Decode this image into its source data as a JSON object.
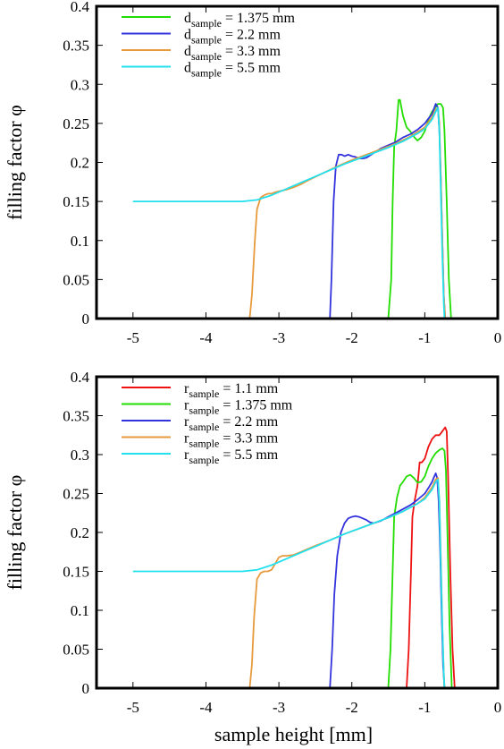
{
  "chart_data": [
    {
      "type": "line",
      "ylabel": "filling factor φ",
      "xlabel": "",
      "xlim": [
        -5.5,
        0
      ],
      "ylim": [
        0,
        0.4
      ],
      "xticks": [
        "-5",
        "-4",
        "-3",
        "-2",
        "-1",
        "0"
      ],
      "yticks": [
        "0",
        "0.05",
        "0.1",
        "0.15",
        "0.2",
        "0.25",
        "0.3",
        "0.35",
        "0.4"
      ],
      "legend_position": "top-left",
      "series": [
        {
          "name_main": "d",
          "name_sub": "sample",
          "name_rest": " = 1.375 mm",
          "color": "#22dd00",
          "points": [
            [
              -1.5,
              0
            ],
            [
              -1.46,
              0.05
            ],
            [
              -1.44,
              0.15
            ],
            [
              -1.42,
              0.22
            ],
            [
              -1.39,
              0.24
            ],
            [
              -1.36,
              0.28
            ],
            [
              -1.34,
              0.28
            ],
            [
              -1.3,
              0.26
            ],
            [
              -1.25,
              0.245
            ],
            [
              -1.2,
              0.24
            ],
            [
              -1.14,
              0.232
            ],
            [
              -1.1,
              0.228
            ],
            [
              -1.05,
              0.232
            ],
            [
              -1.0,
              0.24
            ],
            [
              -0.95,
              0.255
            ],
            [
              -0.9,
              0.265
            ],
            [
              -0.86,
              0.27
            ],
            [
              -0.82,
              0.275
            ],
            [
              -0.78,
              0.275
            ],
            [
              -0.75,
              0.27
            ],
            [
              -0.73,
              0.24
            ],
            [
              -0.7,
              0.15
            ],
            [
              -0.67,
              0.05
            ],
            [
              -0.64,
              0
            ]
          ]
        },
        {
          "name_main": "d",
          "name_sub": "sample",
          "name_rest": " = 2.2 mm",
          "color": "#3333dd",
          "points": [
            [
              -2.3,
              0
            ],
            [
              -2.28,
              0.05
            ],
            [
              -2.25,
              0.15
            ],
            [
              -2.22,
              0.195
            ],
            [
              -2.18,
              0.21
            ],
            [
              -2.14,
              0.21
            ],
            [
              -2.1,
              0.208
            ],
            [
              -2.05,
              0.21
            ],
            [
              -2.0,
              0.208
            ],
            [
              -1.95,
              0.207
            ],
            [
              -1.9,
              0.205
            ],
            [
              -1.85,
              0.205
            ],
            [
              -1.8,
              0.206
            ],
            [
              -1.7,
              0.212
            ],
            [
              -1.6,
              0.218
            ],
            [
              -1.5,
              0.222
            ],
            [
              -1.4,
              0.226
            ],
            [
              -1.3,
              0.232
            ],
            [
              -1.2,
              0.236
            ],
            [
              -1.1,
              0.242
            ],
            [
              -1.0,
              0.25
            ],
            [
              -0.95,
              0.256
            ],
            [
              -0.9,
              0.262
            ],
            [
              -0.87,
              0.27
            ],
            [
              -0.85,
              0.275
            ],
            [
              -0.82,
              0.27
            ],
            [
              -0.8,
              0.24
            ],
            [
              -0.78,
              0.18
            ],
            [
              -0.76,
              0.1
            ],
            [
              -0.74,
              0.03
            ],
            [
              -0.72,
              0
            ]
          ]
        },
        {
          "name_main": "d",
          "name_sub": "sample",
          "name_rest": " = 3.3 mm",
          "color": "#e69a3c",
          "points": [
            [
              -3.4,
              0
            ],
            [
              -3.37,
              0.03
            ],
            [
              -3.33,
              0.1
            ],
            [
              -3.3,
              0.14
            ],
            [
              -3.25,
              0.155
            ],
            [
              -3.2,
              0.158
            ],
            [
              -3.15,
              0.16
            ],
            [
              -3.1,
              0.16
            ],
            [
              -3.05,
              0.162
            ],
            [
              -3.0,
              0.163
            ],
            [
              -2.9,
              0.165
            ],
            [
              -2.8,
              0.168
            ],
            [
              -2.7,
              0.172
            ],
            [
              -2.6,
              0.177
            ],
            [
              -2.4,
              0.186
            ],
            [
              -2.2,
              0.195
            ],
            [
              -2.0,
              0.203
            ],
            [
              -1.8,
              0.21
            ],
            [
              -1.6,
              0.217
            ],
            [
              -1.4,
              0.224
            ],
            [
              -1.2,
              0.233
            ],
            [
              -1.0,
              0.245
            ],
            [
              -0.9,
              0.258
            ],
            [
              -0.85,
              0.268
            ],
            [
              -0.82,
              0.27
            ],
            [
              -0.8,
              0.25
            ],
            [
              -0.78,
              0.18
            ],
            [
              -0.76,
              0.1
            ],
            [
              -0.74,
              0.03
            ],
            [
              -0.72,
              0
            ]
          ]
        },
        {
          "name_main": "d",
          "name_sub": "sample",
          "name_rest": " = 5.5 mm",
          "color": "#22e0ee",
          "points": [
            [
              -5.0,
              0.15
            ],
            [
              -4.5,
              0.15
            ],
            [
              -4.0,
              0.15
            ],
            [
              -3.5,
              0.15
            ],
            [
              -3.3,
              0.152
            ],
            [
              -3.1,
              0.158
            ],
            [
              -2.9,
              0.166
            ],
            [
              -2.7,
              0.174
            ],
            [
              -2.5,
              0.182
            ],
            [
              -2.3,
              0.19
            ],
            [
              -2.1,
              0.198
            ],
            [
              -1.9,
              0.205
            ],
            [
              -1.7,
              0.212
            ],
            [
              -1.5,
              0.219
            ],
            [
              -1.3,
              0.227
            ],
            [
              -1.1,
              0.237
            ],
            [
              -1.0,
              0.243
            ],
            [
              -0.9,
              0.255
            ],
            [
              -0.85,
              0.265
            ],
            [
              -0.82,
              0.27
            ],
            [
              -0.8,
              0.24
            ],
            [
              -0.78,
              0.16
            ],
            [
              -0.76,
              0.08
            ],
            [
              -0.74,
              0.02
            ],
            [
              -0.73,
              0
            ]
          ]
        }
      ]
    },
    {
      "type": "line",
      "ylabel": "filling factor φ",
      "xlabel": "sample height [mm]",
      "xlim": [
        -5.5,
        0
      ],
      "ylim": [
        0,
        0.4
      ],
      "xticks": [
        "-5",
        "-4",
        "-3",
        "-2",
        "-1",
        "0"
      ],
      "yticks": [
        "0",
        "0.05",
        "0.1",
        "0.15",
        "0.2",
        "0.25",
        "0.3",
        "0.35",
        "0.4"
      ],
      "legend_position": "top-left",
      "series": [
        {
          "name_main": "r",
          "name_sub": "sample",
          "name_rest": " = 1.1 mm",
          "color": "#ee1111",
          "points": [
            [
              -1.25,
              0
            ],
            [
              -1.22,
              0.05
            ],
            [
              -1.19,
              0.15
            ],
            [
              -1.17,
              0.22
            ],
            [
              -1.14,
              0.24
            ],
            [
              -1.1,
              0.26
            ],
            [
              -1.07,
              0.29
            ],
            [
              -1.04,
              0.29
            ],
            [
              -1.0,
              0.295
            ],
            [
              -0.95,
              0.31
            ],
            [
              -0.9,
              0.32
            ],
            [
              -0.85,
              0.325
            ],
            [
              -0.8,
              0.325
            ],
            [
              -0.76,
              0.33
            ],
            [
              -0.72,
              0.335
            ],
            [
              -0.7,
              0.33
            ],
            [
              -0.68,
              0.27
            ],
            [
              -0.65,
              0.15
            ],
            [
              -0.62,
              0.05
            ],
            [
              -0.59,
              0
            ]
          ]
        },
        {
          "name_main": "r",
          "name_sub": "sample",
          "name_rest": " = 1.375 mm",
          "color": "#22dd00",
          "points": [
            [
              -1.5,
              0
            ],
            [
              -1.47,
              0.05
            ],
            [
              -1.44,
              0.15
            ],
            [
              -1.42,
              0.22
            ],
            [
              -1.38,
              0.245
            ],
            [
              -1.34,
              0.26
            ],
            [
              -1.3,
              0.265
            ],
            [
              -1.25,
              0.272
            ],
            [
              -1.2,
              0.274
            ],
            [
              -1.15,
              0.27
            ],
            [
              -1.1,
              0.264
            ],
            [
              -1.05,
              0.265
            ],
            [
              -1.0,
              0.272
            ],
            [
              -0.95,
              0.285
            ],
            [
              -0.9,
              0.295
            ],
            [
              -0.85,
              0.302
            ],
            [
              -0.8,
              0.306
            ],
            [
              -0.76,
              0.308
            ],
            [
              -0.73,
              0.305
            ],
            [
              -0.71,
              0.28
            ],
            [
              -0.69,
              0.2
            ],
            [
              -0.66,
              0.08
            ],
            [
              -0.63,
              0
            ]
          ]
        },
        {
          "name_main": "r",
          "name_sub": "sample",
          "name_rest": " = 2.2 mm",
          "color": "#3333dd",
          "points": [
            [
              -2.3,
              0
            ],
            [
              -2.27,
              0.05
            ],
            [
              -2.24,
              0.12
            ],
            [
              -2.2,
              0.17
            ],
            [
              -2.15,
              0.2
            ],
            [
              -2.1,
              0.212
            ],
            [
              -2.05,
              0.218
            ],
            [
              -2.0,
              0.22
            ],
            [
              -1.95,
              0.221
            ],
            [
              -1.9,
              0.22
            ],
            [
              -1.85,
              0.218
            ],
            [
              -1.8,
              0.216
            ],
            [
              -1.75,
              0.213
            ],
            [
              -1.7,
              0.212
            ],
            [
              -1.6,
              0.215
            ],
            [
              -1.5,
              0.22
            ],
            [
              -1.4,
              0.225
            ],
            [
              -1.3,
              0.23
            ],
            [
              -1.2,
              0.235
            ],
            [
              -1.1,
              0.242
            ],
            [
              -1.0,
              0.25
            ],
            [
              -0.95,
              0.257
            ],
            [
              -0.9,
              0.265
            ],
            [
              -0.87,
              0.272
            ],
            [
              -0.85,
              0.276
            ],
            [
              -0.83,
              0.27
            ],
            [
              -0.81,
              0.24
            ],
            [
              -0.79,
              0.18
            ],
            [
              -0.77,
              0.1
            ],
            [
              -0.75,
              0.03
            ],
            [
              -0.73,
              0
            ]
          ]
        },
        {
          "name_main": "r",
          "name_sub": "sample",
          "name_rest": " = 3.3 mm",
          "color": "#e69a3c",
          "points": [
            [
              -3.4,
              0
            ],
            [
              -3.37,
              0.03
            ],
            [
              -3.34,
              0.09
            ],
            [
              -3.3,
              0.14
            ],
            [
              -3.25,
              0.148
            ],
            [
              -3.2,
              0.15
            ],
            [
              -3.15,
              0.15
            ],
            [
              -3.1,
              0.152
            ],
            [
              -3.05,
              0.16
            ],
            [
              -3.0,
              0.168
            ],
            [
              -2.95,
              0.17
            ],
            [
              -2.9,
              0.17
            ],
            [
              -2.8,
              0.171
            ],
            [
              -2.7,
              0.175
            ],
            [
              -2.5,
              0.183
            ],
            [
              -2.3,
              0.19
            ],
            [
              -2.1,
              0.198
            ],
            [
              -1.9,
              0.205
            ],
            [
              -1.7,
              0.212
            ],
            [
              -1.5,
              0.219
            ],
            [
              -1.3,
              0.227
            ],
            [
              -1.1,
              0.237
            ],
            [
              -1.0,
              0.245
            ],
            [
              -0.9,
              0.258
            ],
            [
              -0.85,
              0.268
            ],
            [
              -0.82,
              0.27
            ],
            [
              -0.8,
              0.24
            ],
            [
              -0.78,
              0.17
            ],
            [
              -0.76,
              0.08
            ],
            [
              -0.74,
              0.02
            ],
            [
              -0.73,
              0
            ]
          ]
        },
        {
          "name_main": "r",
          "name_sub": "sample",
          "name_rest": " = 5.5 mm",
          "color": "#22e0ee",
          "points": [
            [
              -5.0,
              0.15
            ],
            [
              -4.5,
              0.15
            ],
            [
              -4.0,
              0.15
            ],
            [
              -3.5,
              0.15
            ],
            [
              -3.3,
              0.152
            ],
            [
              -3.1,
              0.158
            ],
            [
              -2.9,
              0.166
            ],
            [
              -2.7,
              0.174
            ],
            [
              -2.5,
              0.182
            ],
            [
              -2.3,
              0.19
            ],
            [
              -2.1,
              0.198
            ],
            [
              -1.9,
              0.205
            ],
            [
              -1.7,
              0.212
            ],
            [
              -1.5,
              0.219
            ],
            [
              -1.3,
              0.227
            ],
            [
              -1.1,
              0.237
            ],
            [
              -1.0,
              0.243
            ],
            [
              -0.9,
              0.255
            ],
            [
              -0.85,
              0.265
            ],
            [
              -0.82,
              0.268
            ],
            [
              -0.8,
              0.24
            ],
            [
              -0.78,
              0.16
            ],
            [
              -0.76,
              0.08
            ],
            [
              -0.74,
              0.02
            ],
            [
              -0.73,
              0
            ]
          ]
        }
      ]
    }
  ]
}
